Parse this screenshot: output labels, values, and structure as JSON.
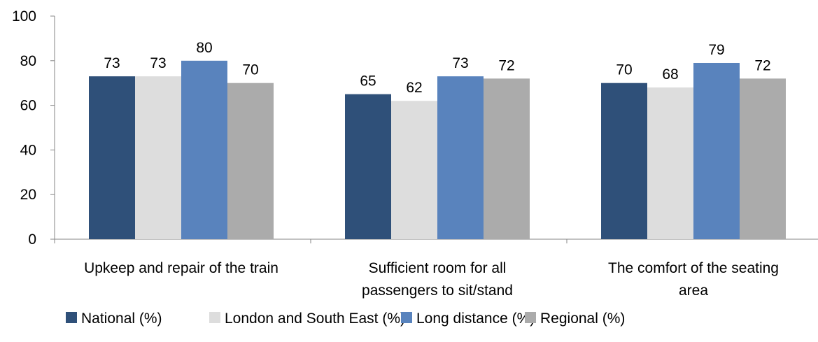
{
  "chart_data": {
    "type": "bar",
    "categories": [
      [
        "Upkeep and repair of the train"
      ],
      [
        "Sufficient room for all",
        "passengers to sit/stand"
      ],
      [
        "The comfort of the seating",
        "area"
      ]
    ],
    "series": [
      {
        "name": "National (%)",
        "color": "#2F5079",
        "values": [
          73,
          65,
          70
        ]
      },
      {
        "name": "London and South East (%)",
        "color": "#DDDDDD",
        "values": [
          73,
          62,
          68
        ]
      },
      {
        "name": "Long distance (%)",
        "color": "#5983BD",
        "values": [
          80,
          73,
          79
        ]
      },
      {
        "name": "Regional (%)",
        "color": "#ABABAB",
        "values": [
          70,
          72,
          72
        ]
      }
    ],
    "ylim": [
      0,
      100
    ],
    "yticks": [
      0,
      20,
      40,
      60,
      80,
      100
    ],
    "grid": false,
    "legend_position": "bottom"
  }
}
